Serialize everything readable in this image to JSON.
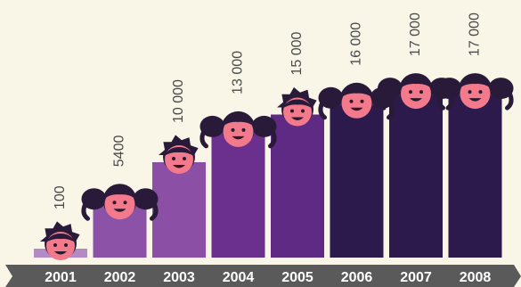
{
  "chart_data": {
    "type": "bar",
    "categories": [
      "2001",
      "2002",
      "2003",
      "2004",
      "2005",
      "2006",
      "2007",
      "2008"
    ],
    "values": [
      100,
      5400,
      10000,
      13000,
      15000,
      16000,
      17000,
      17000
    ],
    "value_labels": [
      "100",
      "5400",
      "10 000",
      "13 000",
      "15 000",
      "16 000",
      "17 000",
      "17 000"
    ],
    "title": "",
    "xlabel": "",
    "ylabel": "",
    "grid": false,
    "legend": "none",
    "bar_colors": [
      "#b48ac4",
      "#8c52a8",
      "#8c4fa6",
      "#6b2f8e",
      "#5f2a84",
      "#2c1a4d",
      "#2c1a4d",
      "#2c1a4d"
    ],
    "head_types": [
      "boy",
      "girl",
      "boy",
      "girl",
      "boy",
      "girl",
      "girl",
      "girl"
    ],
    "axis_color": "#5a5a5a",
    "face_color": "#f27a8c",
    "hair_color": "#2a1a3a"
  }
}
